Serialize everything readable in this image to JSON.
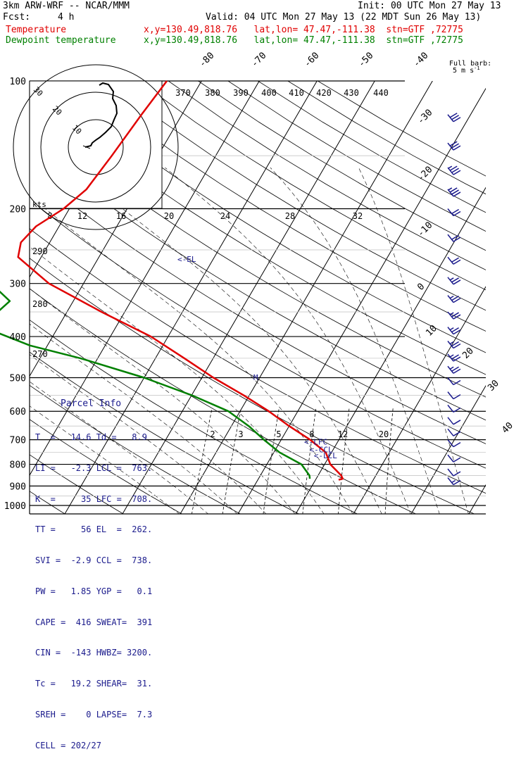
{
  "header": {
    "model": "3km ARW-WRF -- NCAR/MMM",
    "init": "Init: 00 UTC Mon 27 May 13",
    "fcst_label": "Fcst:",
    "fcst_value": "4 h",
    "valid": "Valid: 04 UTC Mon 27 May 13 (22 MDT Sun 26 May 13)",
    "legend": [
      {
        "label": "Temperature",
        "info": "x,y=130.49,818.76   lat,lon= 47.47,-111.38  stn=GTF ,72775",
        "color": "#e00000"
      },
      {
        "label": "Dewpoint temperature",
        "info": "x,y=130.49,818.76   lat,lon= 47.47,-111.38  stn=GTF ,72775",
        "color": "#008000"
      }
    ],
    "barb_key_line1": "Full barb:",
    "barb_key_line2": "5 m s",
    "barb_key_sup": "-1"
  },
  "parcel_info": {
    "title": "Parcel Info",
    "rows": [
      "T  =   14.6 Td =   8.9",
      "LI =   -2.3 LCL =  763.",
      "K  =     35 LFC =  708.",
      "TT =     56 EL  =  262.",
      "SVI =  -2.9 CCL =  738.",
      "PW =   1.85 YGP =   0.1",
      "CAPE =  416 SWEAT=  391",
      "CIN =  -143 HWBZ= 3200.",
      "Tc =   19.2 SHEAR=  31.",
      "SREH =    0 LAPSE=  7.3",
      "CELL = 202/27"
    ]
  },
  "chart_data": {
    "type": "line",
    "chart_kind": "skew-T log-p sounding",
    "pressure_axis": {
      "label": "",
      "ticks": [
        100,
        200,
        300,
        400,
        500,
        600,
        700,
        800,
        900,
        1000
      ],
      "scale": "log"
    },
    "isotherm_labels": [
      -80,
      -70,
      -60,
      -50,
      -40,
      -30,
      -20,
      -10,
      0,
      10,
      20,
      30,
      40
    ],
    "mixing_ratio_labels": [
      "2",
      "3",
      "5",
      "8",
      "12",
      "20"
    ],
    "theta_e_labels": [
      "370",
      "380",
      "390",
      "400",
      "410",
      "420",
      "430",
      "440"
    ],
    "dry_adiabat_labels": [
      "270",
      "280",
      "290"
    ],
    "series": [
      {
        "name": "Temperature",
        "color": "#e00000",
        "points": [
          [
            100,
            -56
          ],
          [
            120,
            -57
          ],
          [
            150,
            -58
          ],
          [
            180,
            -59
          ],
          [
            200,
            -61
          ],
          [
            220,
            -64
          ],
          [
            240,
            -65
          ],
          [
            260,
            -64
          ],
          [
            300,
            -56
          ],
          [
            350,
            -44
          ],
          [
            400,
            -33
          ],
          [
            450,
            -25
          ],
          [
            500,
            -18
          ],
          [
            550,
            -11
          ],
          [
            600,
            -5
          ],
          [
            650,
            0
          ],
          [
            700,
            5
          ],
          [
            750,
            9
          ],
          [
            800,
            11
          ],
          [
            850,
            14
          ],
          [
            865,
            14.6
          ],
          [
            870,
            14
          ]
        ]
      },
      {
        "name": "Dewpoint temperature",
        "color": "#008000",
        "points": [
          [
            100,
            -90
          ],
          [
            120,
            -88
          ],
          [
            140,
            -86
          ],
          [
            160,
            -87
          ],
          [
            180,
            -89
          ],
          [
            200,
            -87
          ],
          [
            220,
            -82
          ],
          [
            250,
            -75
          ],
          [
            300,
            -66
          ],
          [
            330,
            -61
          ],
          [
            350,
            -62
          ],
          [
            380,
            -63
          ],
          [
            420,
            -53
          ],
          [
            450,
            -43
          ],
          [
            500,
            -30
          ],
          [
            550,
            -20
          ],
          [
            600,
            -12
          ],
          [
            650,
            -7
          ],
          [
            700,
            -3
          ],
          [
            750,
            1
          ],
          [
            800,
            6
          ],
          [
            850,
            8.5
          ],
          [
            865,
            8.9
          ]
        ]
      }
    ],
    "annotations": [
      {
        "text": "<-EL",
        "p": 262
      },
      {
        "text": "<-LFC",
        "p": 708
      },
      {
        "text": "<-CCL",
        "p": 738
      },
      {
        "text": "<-LCL",
        "p": 763
      },
      {
        "text": "M",
        "p": 500
      }
    ],
    "hodograph": {
      "rings": [
        "10",
        "20",
        "30"
      ],
      "speed_labels": [
        "8",
        "12",
        "16",
        "20",
        "24",
        "28",
        "32"
      ],
      "speed_unit": "kts"
    },
    "wind_barbs_kts": [
      {
        "p": 120,
        "spd": 30
      },
      {
        "p": 140,
        "spd": 30
      },
      {
        "p": 160,
        "spd": 25
      },
      {
        "p": 180,
        "spd": 25
      },
      {
        "p": 200,
        "spd": 20
      },
      {
        "p": 230,
        "spd": 20
      },
      {
        "p": 260,
        "spd": 20
      },
      {
        "p": 290,
        "spd": 15
      },
      {
        "p": 320,
        "spd": 15
      },
      {
        "p": 350,
        "spd": 15
      },
      {
        "p": 380,
        "spd": 15
      },
      {
        "p": 410,
        "spd": 15
      },
      {
        "p": 440,
        "spd": 15
      },
      {
        "p": 470,
        "spd": 15
      },
      {
        "p": 500,
        "spd": 10
      },
      {
        "p": 540,
        "spd": 10
      },
      {
        "p": 580,
        "spd": 10
      },
      {
        "p": 620,
        "spd": 10
      },
      {
        "p": 660,
        "spd": 10
      },
      {
        "p": 700,
        "spd": 10
      },
      {
        "p": 760,
        "spd": 10
      },
      {
        "p": 820,
        "spd": 10
      },
      {
        "p": 860,
        "spd": 5
      }
    ]
  }
}
